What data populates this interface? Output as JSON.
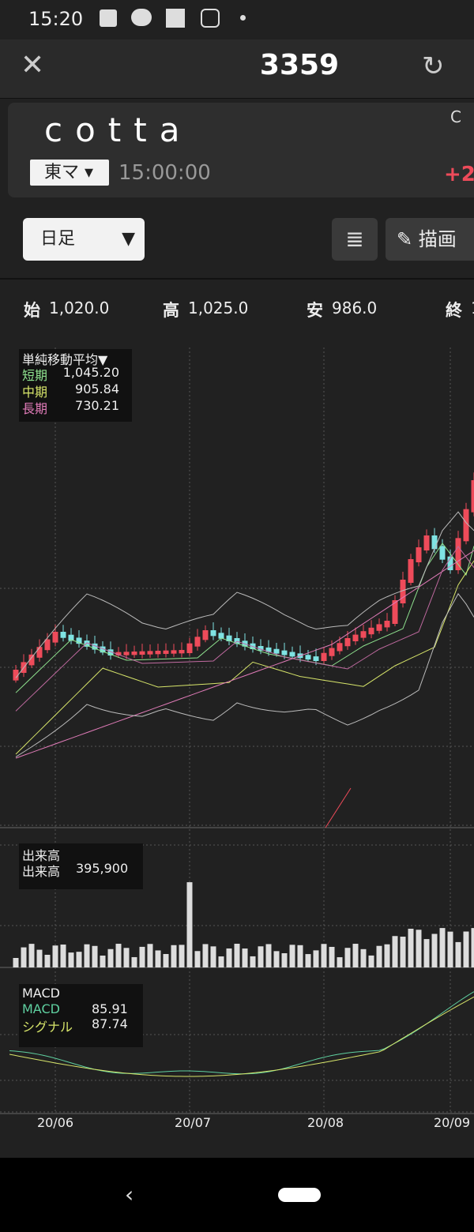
{
  "status": {
    "time": "15:20"
  },
  "header": {
    "title": "3359"
  },
  "stock": {
    "name": "cotta",
    "market": "東マ",
    "time": "15:00:00",
    "right_top": "C",
    "change": "+2"
  },
  "controls": {
    "period": "日足",
    "draw": "描画"
  },
  "ohlc": [
    {
      "label": "始",
      "value": "1,020.0"
    },
    {
      "label": "高",
      "value": "1,025.0"
    },
    {
      "label": "安",
      "value": "986.0"
    },
    {
      "label": "終",
      "value": "1"
    }
  ],
  "ma": {
    "title": "単純移動平均▼",
    "rows": [
      {
        "label": "短期",
        "value": "1,045.20"
      },
      {
        "label": "中期",
        "value": "905.84"
      },
      {
        "label": "長期",
        "value": "730.21"
      }
    ]
  },
  "volume": {
    "title": "出来高",
    "label": "出来高",
    "value": "395,900"
  },
  "macd": {
    "title": "MACD",
    "rows": [
      {
        "label": "MACD",
        "value": "85.91"
      },
      {
        "label": "シグナル",
        "value": "87.74"
      }
    ]
  },
  "x_labels": [
    "20/06",
    "20/07",
    "20/08",
    "20/09"
  ]
}
